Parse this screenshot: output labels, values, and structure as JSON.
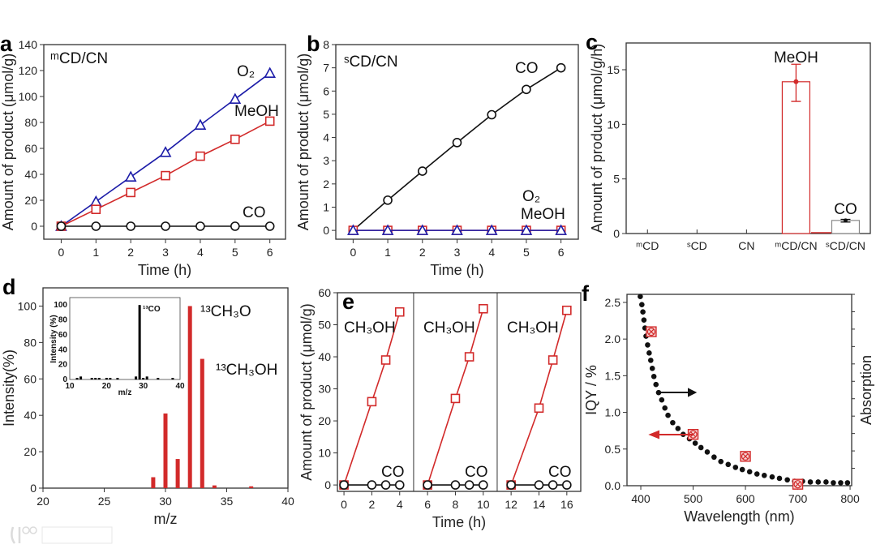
{
  "colors": {
    "blue": "#1c1ca8",
    "red": "#d22a2a",
    "black": "#111111",
    "iqy_axis": "#b5303a"
  },
  "watermark": "大数跨境",
  "chart_data": [
    {
      "panel": "a",
      "type": "line",
      "title": "ᵐCD/CN",
      "xlabel": "Time (h)",
      "ylabel": "Amount of product (μmol/g)",
      "xlim": [
        -0.5,
        6.45
      ],
      "ylim": [
        -10,
        140
      ],
      "xticks": [
        0,
        1,
        2,
        3,
        4,
        5,
        6
      ],
      "yticks": [
        0,
        20,
        40,
        60,
        80,
        100,
        120,
        140
      ],
      "series": [
        {
          "name": "O₂",
          "marker": "triangle",
          "color": "#1c1ca8",
          "x": [
            0,
            1,
            2,
            3,
            4,
            5,
            6
          ],
          "y": [
            0,
            19,
            38,
            57,
            78,
            98,
            118
          ]
        },
        {
          "name": "MeOH",
          "marker": "square",
          "color": "#d22a2a",
          "x": [
            0,
            1,
            2,
            3,
            4,
            5,
            6
          ],
          "y": [
            0,
            13,
            26,
            39,
            54,
            67,
            81
          ]
        },
        {
          "name": "CO",
          "marker": "circle",
          "color": "#111111",
          "x": [
            0,
            1,
            2,
            3,
            4,
            5,
            6
          ],
          "y": [
            0,
            0,
            0,
            0,
            0,
            0,
            0
          ]
        }
      ]
    },
    {
      "panel": "b",
      "type": "line",
      "title": "ˢCD/CN",
      "xlabel": "Time (h)",
      "ylabel": "Amount of product (μmol/g)",
      "xlim": [
        -0.5,
        6.5
      ],
      "ylim": [
        -0.38,
        8
      ],
      "xticks": [
        0,
        1,
        2,
        3,
        4,
        5,
        6
      ],
      "yticks": [
        0,
        1,
        2,
        3,
        4,
        5,
        6,
        7,
        8
      ],
      "series": [
        {
          "name": "CO",
          "marker": "circle",
          "color": "#111111",
          "x": [
            0,
            1,
            2,
            3,
            4,
            5,
            6
          ],
          "y": [
            0,
            1.3,
            2.55,
            3.78,
            4.98,
            6.07,
            7.0
          ]
        },
        {
          "name": "MeOH",
          "marker": "square",
          "color": "#d22a2a",
          "x": [
            0,
            1,
            2,
            3,
            4,
            5,
            6
          ],
          "y": [
            0,
            0,
            0,
            0,
            0,
            0,
            0
          ]
        },
        {
          "name": "O₂",
          "marker": "triangle",
          "color": "#1c1ca8",
          "x": [
            0,
            1,
            2,
            3,
            4,
            5,
            6
          ],
          "y": [
            0,
            0,
            0,
            0,
            0,
            0,
            0
          ]
        }
      ]
    },
    {
      "panel": "c",
      "type": "bar",
      "xlabel": "",
      "ylabel": "Amount of product (μmol/g/h)",
      "categories": [
        "ᵐCD",
        "ˢCD",
        "CN",
        "ᵐCD/CN",
        "ˢCD/CN"
      ],
      "xlim": [
        -0.43,
        4.5
      ],
      "ylim": [
        0,
        17.45
      ],
      "yticks": [
        0,
        5,
        10,
        15
      ],
      "series": [
        {
          "name": "MeOH",
          "color": "#d22a2a",
          "values": [
            0,
            0,
            0,
            13.9,
            0
          ],
          "error_range": [
            null,
            null,
            null,
            [
              12.1,
              15.5
            ],
            null
          ]
        },
        {
          "name": "CO",
          "color": "#111111",
          "values": [
            0,
            0,
            0,
            0,
            1.2
          ],
          "error_range": [
            null,
            null,
            null,
            null,
            [
              1.05,
              1.3
            ]
          ]
        }
      ]
    },
    {
      "panel": "d",
      "type": "bar",
      "xlabel": "m/z",
      "ylabel": "Intensity(%)",
      "xlim": [
        20,
        40
      ],
      "ylim": [
        0,
        110
      ],
      "xticks": [
        20,
        25,
        30,
        35,
        40
      ],
      "yticks": [
        0,
        20,
        40,
        60,
        80,
        100
      ],
      "x": [
        29,
        30,
        31,
        32,
        33,
        34,
        37
      ],
      "values": [
        6,
        41,
        16,
        100,
        71,
        1.5,
        1
      ],
      "annotations": [
        "¹³CH₃O",
        "¹³CH₃OH"
      ],
      "inset": {
        "xlabel": "m/z",
        "ylabel": "Intensity (%)",
        "annotation": "¹³CO",
        "xlim": [
          10,
          40
        ],
        "ylim": [
          0,
          110
        ],
        "xticks": [
          10,
          20,
          30,
          40
        ],
        "yticks": [
          0,
          20,
          40,
          60,
          80,
          100
        ],
        "x": [
          12,
          13,
          16,
          17,
          18,
          20,
          21,
          23,
          28,
          29,
          30,
          31,
          34,
          38
        ],
        "values": [
          1,
          4,
          1,
          1,
          1,
          0.5,
          0.5,
          0.5,
          4,
          100,
          1,
          4,
          0.5,
          0.5
        ]
      }
    },
    {
      "panel": "e",
      "type": "line",
      "xlabel": "Time (h)",
      "ylabel": "Amount of product (μmol/g)",
      "xlim": [
        -0.47,
        17
      ],
      "ylim": [
        -2,
        60
      ],
      "xticks": [
        0,
        2,
        4,
        6,
        8,
        10,
        12,
        14,
        16
      ],
      "yticks": [
        0,
        10,
        20,
        30,
        40,
        50,
        60
      ],
      "dividers": [
        5,
        11
      ],
      "series": [
        {
          "name": "CH₃OH",
          "marker": "square",
          "color": "#d22a2a",
          "segments": [
            {
              "x": [
                0,
                2,
                3,
                4
              ],
              "y": [
                0,
                26,
                39,
                54
              ]
            },
            {
              "x": [
                6,
                8,
                9,
                10
              ],
              "y": [
                0,
                27,
                40,
                55
              ]
            },
            {
              "x": [
                12,
                14,
                15,
                16
              ],
              "y": [
                0,
                24,
                39,
                54.5
              ]
            }
          ]
        },
        {
          "name": "CO",
          "marker": "circle",
          "color": "#111111",
          "segments": [
            {
              "x": [
                0,
                2,
                3,
                4
              ],
              "y": [
                0,
                0,
                0,
                0
              ]
            },
            {
              "x": [
                6,
                8,
                9,
                10
              ],
              "y": [
                0,
                0,
                0,
                0
              ]
            },
            {
              "x": [
                12,
                14,
                15,
                16
              ],
              "y": [
                0,
                0,
                0,
                0
              ]
            }
          ]
        }
      ]
    },
    {
      "panel": "f",
      "type": "scatter",
      "xlabel": "Wavelength (nm)",
      "ylabel": "IQY / %",
      "ylabel_right": "Absorption",
      "xlim": [
        373.6,
        803
      ],
      "ylim": [
        0,
        2.61
      ],
      "xticks": [
        400,
        500,
        600,
        700,
        800
      ],
      "yticks": [
        0,
        0.5,
        1.0,
        1.5,
        2.0,
        2.5
      ],
      "ytick_labels": [
        "0.0",
        "0.5",
        "1.0",
        "1.5",
        "2.0",
        "2.5"
      ],
      "series": [
        {
          "name": "IQY",
          "marker": "crossed-square",
          "color": "#d22a2a",
          "axis": "left",
          "x": [
            420,
            500,
            600,
            700
          ],
          "y": [
            2.1,
            0.7,
            0.4,
            0.02
          ]
        },
        {
          "name": "Absorption",
          "marker": "dot",
          "color": "#111111",
          "axis": "right",
          "x": [
            399,
            402,
            404,
            406,
            408,
            410,
            413,
            416,
            419,
            422,
            425,
            429,
            434,
            440,
            446,
            452,
            461,
            471,
            481,
            493,
            504,
            515,
            527,
            540,
            553,
            567,
            581,
            594,
            608,
            622,
            636,
            651,
            665,
            680,
            694,
            709,
            724,
            739,
            754,
            768,
            782,
            795
          ],
          "y": [
            2.58,
            2.47,
            2.37,
            2.26,
            2.15,
            2.04,
            1.92,
            1.81,
            1.71,
            1.6,
            1.49,
            1.38,
            1.27,
            1.17,
            1.06,
            0.96,
            0.86,
            0.78,
            0.7,
            0.64,
            0.58,
            0.52,
            0.46,
            0.39,
            0.33,
            0.29,
            0.25,
            0.22,
            0.19,
            0.16,
            0.14,
            0.12,
            0.1,
            0.08,
            0.06,
            0.06,
            0.05,
            0.05,
            0.05,
            0.04,
            0.04,
            0.04
          ]
        }
      ]
    }
  ]
}
